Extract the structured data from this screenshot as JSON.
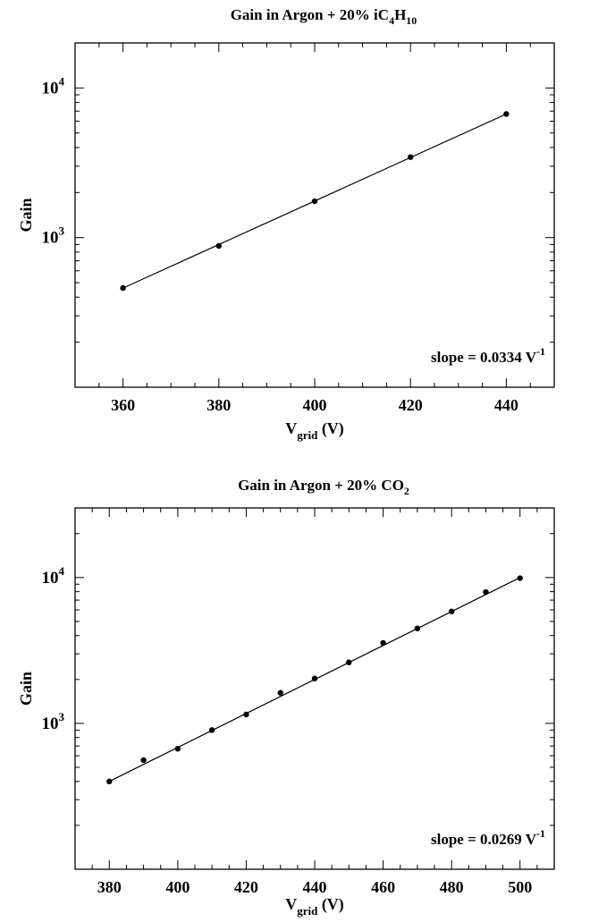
{
  "chart_data": [
    {
      "type": "scatter",
      "title": {
        "main": "Gain in Argon + 20% iC",
        "sub1": "4",
        "mid": "H",
        "sub2": "10"
      },
      "xlabel": {
        "main": "V",
        "sub": "grid",
        "tail": " (V)"
      },
      "ylabel": "Gain",
      "xlim": [
        350,
        450
      ],
      "ylim": [
        100,
        20000
      ],
      "y_scale": "log",
      "x_ticks": [
        360,
        380,
        400,
        420,
        440
      ],
      "y_ticks": [
        1000,
        10000
      ],
      "y_tick_labels": [
        {
          "base": "10",
          "exp": "3"
        },
        {
          "base": "10",
          "exp": "4"
        }
      ],
      "x": [
        360,
        380,
        400,
        420,
        440
      ],
      "y": [
        460,
        880,
        1750,
        3450,
        6700
      ],
      "fit_line": {
        "x": [
          360,
          440
        ],
        "y": [
          460,
          6700
        ]
      },
      "annotation": {
        "text": "slope = 0.0334 V",
        "sup": "-1"
      },
      "grid": false
    },
    {
      "type": "scatter",
      "title": {
        "main": "Gain in Argon + 20% CO",
        "sub1": "2",
        "mid": "",
        "sub2": ""
      },
      "xlabel": {
        "main": "V",
        "sub": "grid",
        "tail": " (V)"
      },
      "ylabel": "Gain",
      "xlim": [
        370,
        510
      ],
      "ylim": [
        100,
        30000
      ],
      "y_scale": "log",
      "x_ticks": [
        380,
        400,
        420,
        440,
        460,
        480,
        500
      ],
      "y_ticks": [
        1000,
        10000
      ],
      "y_tick_labels": [
        {
          "base": "10",
          "exp": "3"
        },
        {
          "base": "10",
          "exp": "4"
        }
      ],
      "x": [
        380,
        390,
        400,
        410,
        420,
        430,
        440,
        450,
        460,
        470,
        480,
        490,
        500
      ],
      "y": [
        400,
        560,
        670,
        900,
        1150,
        1620,
        2030,
        2620,
        3560,
        4480,
        5850,
        7950,
        9900
      ],
      "fit_line": {
        "x": [
          380,
          500
        ],
        "y": [
          400,
          10000
        ]
      },
      "annotation": {
        "text": "slope = 0.0269 V",
        "sup": "-1"
      },
      "grid": false
    }
  ]
}
